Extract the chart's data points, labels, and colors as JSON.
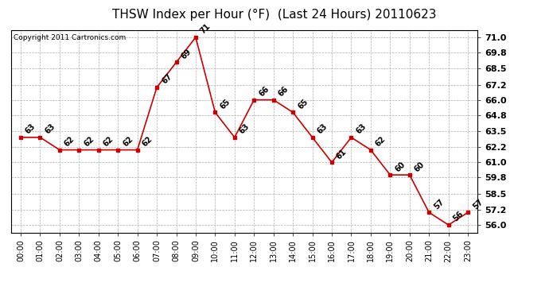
{
  "title": "THSW Index per Hour (°F)  (Last 24 Hours) 20110623",
  "copyright": "Copyright 2011 Cartronics.com",
  "hours": [
    "00:00",
    "01:00",
    "02:00",
    "03:00",
    "04:00",
    "05:00",
    "06:00",
    "07:00",
    "08:00",
    "09:00",
    "10:00",
    "11:00",
    "12:00",
    "13:00",
    "14:00",
    "15:00",
    "16:00",
    "17:00",
    "18:00",
    "19:00",
    "20:00",
    "21:00",
    "22:00",
    "23:00"
  ],
  "values": [
    63,
    63,
    62,
    62,
    62,
    62,
    62,
    67,
    69,
    71,
    65,
    63,
    66,
    66,
    65,
    63,
    61,
    63,
    62,
    60,
    60,
    57,
    56,
    57
  ],
  "ylim_min": 55.4,
  "ylim_max": 71.6,
  "yticks": [
    56.0,
    57.2,
    58.5,
    59.8,
    61.0,
    62.2,
    63.5,
    64.8,
    66.0,
    67.2,
    68.5,
    69.8,
    71.0
  ],
  "line_color": "#cc0000",
  "marker_color": "#cc0000",
  "bg_color": "#ffffff",
  "plot_bg_color": "#ffffff",
  "grid_color": "#b0b0b0",
  "title_fontsize": 11,
  "copyright_fontsize": 6.5,
  "tick_fontsize": 7,
  "annotation_fontsize": 7,
  "ytick_fontsize": 8
}
